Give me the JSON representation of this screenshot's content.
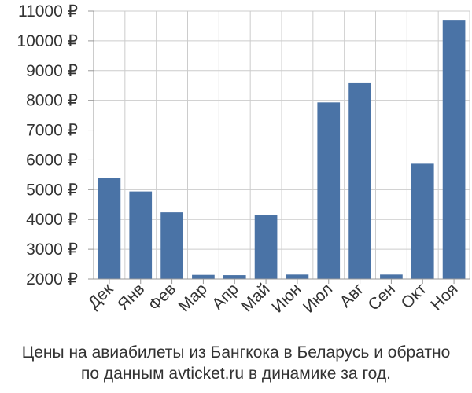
{
  "chart_data": {
    "type": "bar",
    "categories": [
      "Дек",
      "Янв",
      "Фев",
      "Мар",
      "Апр",
      "Май",
      "Июн",
      "Июл",
      "Авг",
      "Сен",
      "Окт",
      "Ноя"
    ],
    "values": [
      5400,
      4940,
      4240,
      2140,
      2130,
      4150,
      2150,
      7930,
      8600,
      2150,
      5870,
      10680
    ],
    "ylim": [
      2000,
      11000
    ],
    "yticks": [
      2000,
      3000,
      4000,
      5000,
      6000,
      7000,
      8000,
      9000,
      10000,
      11000
    ],
    "ytick_labels": [
      "2000 ₽",
      "3000 ₽",
      "4000 ₽",
      "5000 ₽",
      "6000 ₽",
      "7000 ₽",
      "8000 ₽",
      "9000 ₽",
      "10000 ₽",
      "11000 ₽"
    ],
    "grid": true,
    "bar_color": "#4a73a6",
    "caption_lines": [
      "Цены на авиабилеты из Бангкока в Беларусь и обратно",
      "по данным avticket.ru в динамике за год."
    ]
  }
}
